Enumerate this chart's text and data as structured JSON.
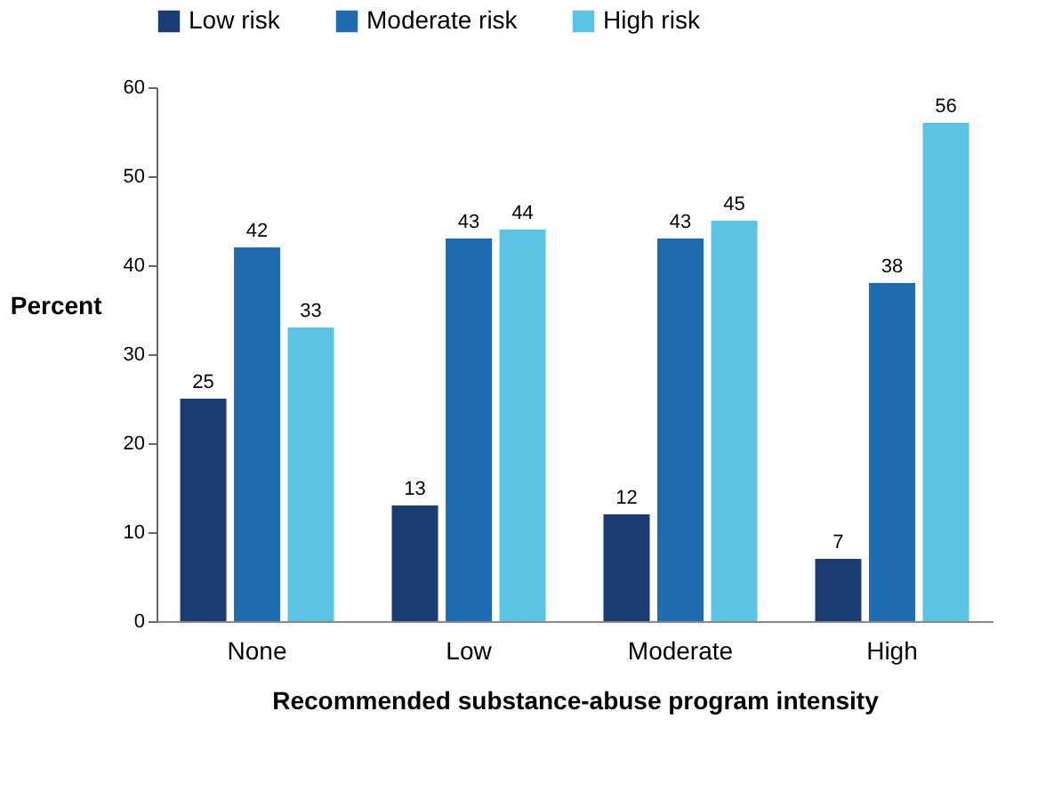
{
  "chart_data": {
    "type": "bar",
    "xlabel": "Recommended substance-abuse program intensity",
    "ylabel": "Percent",
    "categories": [
      "None",
      "Low",
      "Moderate",
      "High"
    ],
    "series": [
      {
        "name": "Low risk",
        "color": "#1b3c73",
        "values": [
          25,
          13,
          12,
          7
        ]
      },
      {
        "name": "Moderate risk",
        "color": "#1f6db0",
        "values": [
          42,
          43,
          43,
          38
        ]
      },
      {
        "name": "High risk",
        "color": "#5bc3e3",
        "values": [
          33,
          44,
          45,
          56
        ]
      }
    ],
    "ylim": [
      0,
      60
    ],
    "yticks": [
      0,
      10,
      20,
      30,
      40,
      50,
      60
    ],
    "grid": false,
    "legend": "top",
    "data_labels": true
  }
}
